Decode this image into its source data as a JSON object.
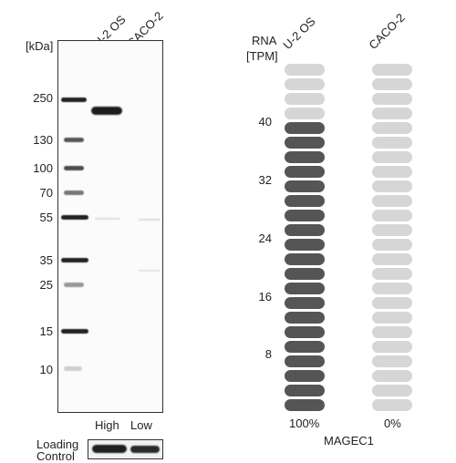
{
  "western_blot": {
    "kda_label": "[kDa]",
    "lane_labels": [
      "U-2 OS",
      "CACO-2"
    ],
    "markers": [
      "250",
      "130",
      "100",
      "70",
      "55",
      "35",
      "25",
      "15",
      "10"
    ],
    "expression_labels": [
      "High",
      "Low"
    ],
    "loading_control_label_1": "Loading",
    "loading_control_label_2": "Control"
  },
  "rna": {
    "header_1": "RNA",
    "header_2": "[TPM]",
    "cell_lines": [
      "U-2 OS",
      "CACO-2"
    ],
    "scale_ticks": [
      "40",
      "32",
      "24",
      "16",
      "8"
    ],
    "lane_1_percent": "100%",
    "lane_2_percent": "0%",
    "gene_name": "MAGEC1",
    "filled_segments_lane_1": 20,
    "filled_segments_lane_2": 0,
    "total_segments": 24,
    "fill_color": "#555555",
    "empty_color": "#d6d6d6"
  }
}
